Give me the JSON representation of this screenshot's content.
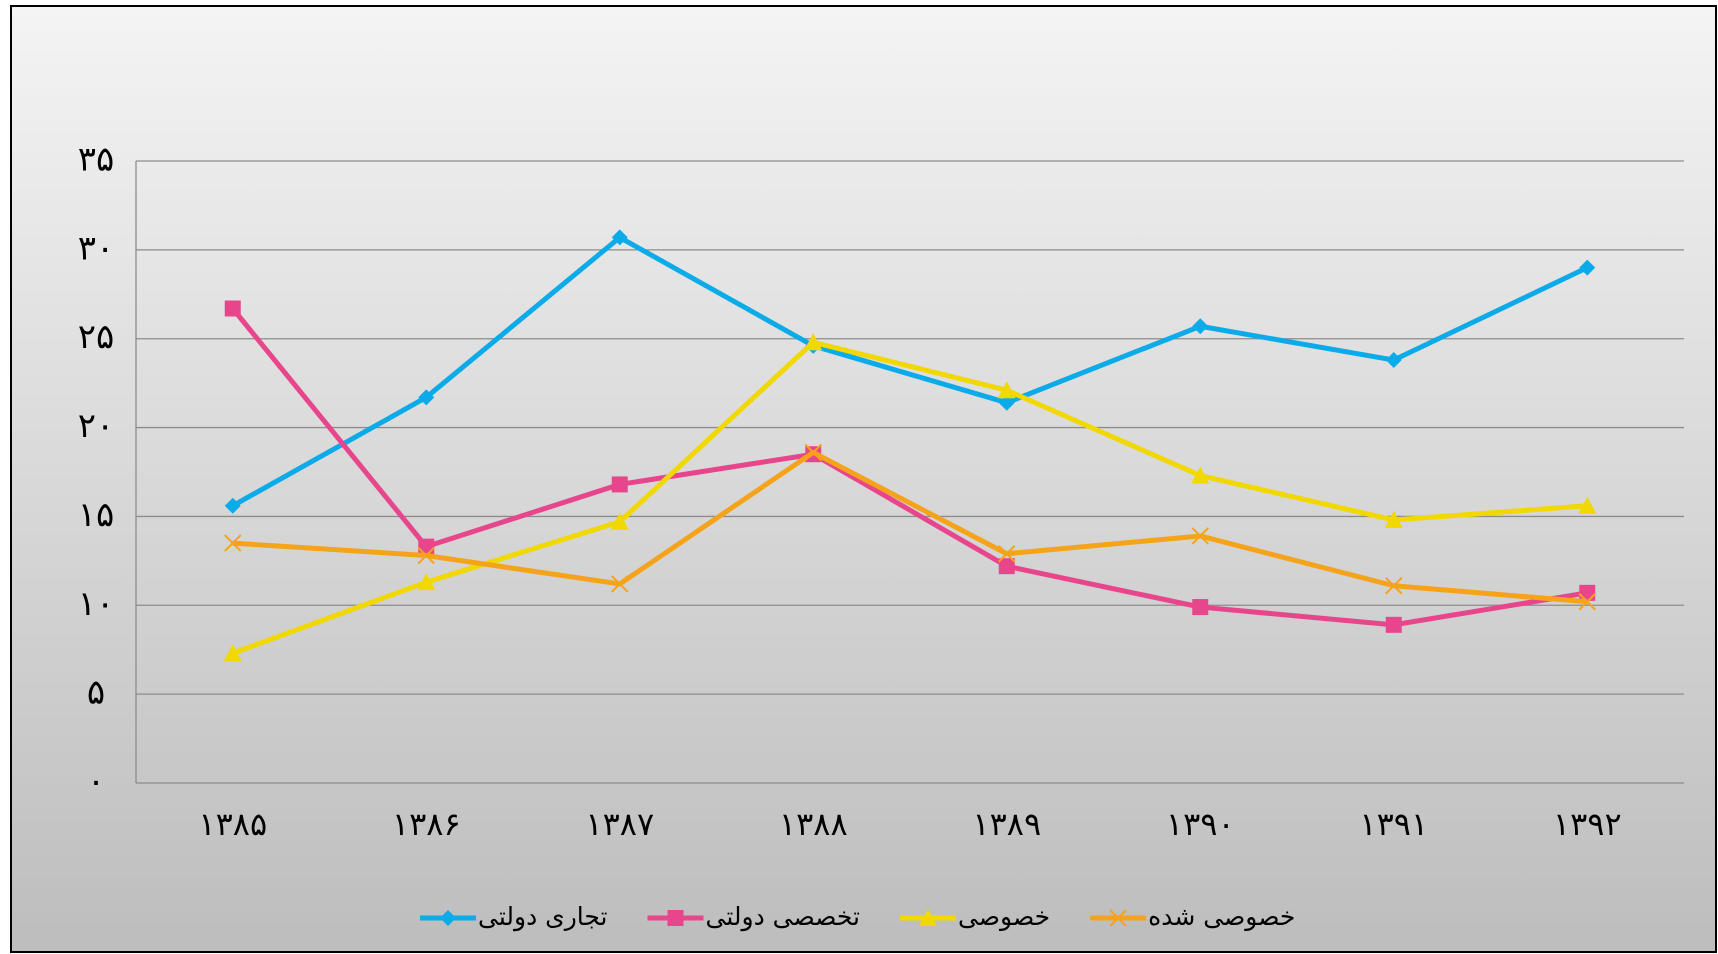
{
  "chart_data": {
    "type": "line",
    "categories": [
      "۱۳۸۵",
      "۱۳۸۶",
      "۱۳۸۷",
      "۱۳۸۸",
      "۱۳۸۹",
      "۱۳۹۰",
      "۱۳۹۱",
      "۱۳۹۲"
    ],
    "series": [
      {
        "name": "تجاری دولتی",
        "color": "#0aabe8",
        "marker": "diamond",
        "values": [
          15.6,
          21.7,
          30.7,
          24.6,
          21.4,
          25.7,
          23.8,
          29.0
        ]
      },
      {
        "name": "تخصصی دولتی",
        "color": "#e8468c",
        "marker": "square",
        "values": [
          26.7,
          13.3,
          16.8,
          18.5,
          12.2,
          9.9,
          8.9,
          10.7
        ]
      },
      {
        "name": "خصوصی",
        "color": "#f0d800",
        "marker": "triangle",
        "values": [
          7.3,
          11.3,
          14.7,
          24.8,
          22.1,
          17.3,
          14.8,
          15.6
        ]
      },
      {
        "name": "خصوصی شده",
        "color": "#f5a31a",
        "marker": "x",
        "values": [
          13.5,
          12.8,
          11.2,
          18.6,
          12.9,
          13.9,
          11.1,
          10.2
        ]
      }
    ],
    "ylim": [
      0,
      35
    ],
    "yticks": [
      {
        "value": 0,
        "label": "۰"
      },
      {
        "value": 5,
        "label": "۵"
      },
      {
        "value": 10,
        "label": "۱۰"
      },
      {
        "value": 15,
        "label": "۱۵"
      },
      {
        "value": 20,
        "label": "۲۰"
      },
      {
        "value": 25,
        "label": "۲۵"
      },
      {
        "value": 30,
        "label": "۳۰"
      },
      {
        "value": 35,
        "label": "۳۵"
      }
    ],
    "grid": true,
    "legend": "bottom"
  }
}
